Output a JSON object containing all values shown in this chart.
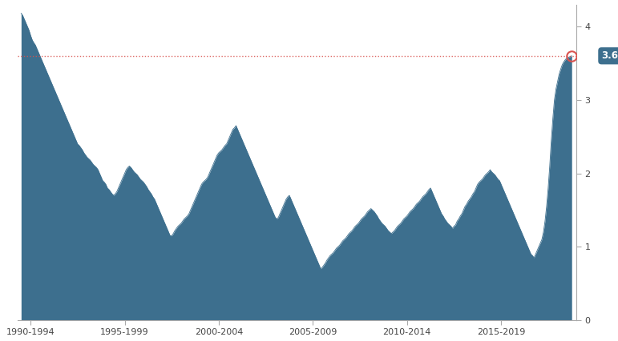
{
  "bar_color": "#3d6f8e",
  "dotted_line_y": 3.6,
  "dotted_line_color": "#d9534f",
  "annotation_value": "3.6",
  "annotation_bg": "#3d6f8e",
  "annotation_text_color": "#ffffff",
  "x_tick_labels": [
    "1990-1994",
    "1995-1999",
    "2000-2004",
    "2005-2009",
    "2010-2014",
    "2015-2019"
  ],
  "x_tick_positions": [
    6,
    66,
    126,
    186,
    246,
    306
  ],
  "background_color": "#ffffff",
  "ylim": [
    0,
    4.3
  ],
  "yticks": [
    0.0,
    1.0,
    2.0,
    3.0,
    4.0
  ],
  "pce_data": [
    4.18,
    4.15,
    4.1,
    4.05,
    4.0,
    3.95,
    3.88,
    3.82,
    3.78,
    3.75,
    3.7,
    3.65,
    3.6,
    3.55,
    3.5,
    3.45,
    3.4,
    3.35,
    3.3,
    3.25,
    3.2,
    3.15,
    3.1,
    3.05,
    3.0,
    2.95,
    2.9,
    2.85,
    2.8,
    2.75,
    2.7,
    2.65,
    2.6,
    2.55,
    2.5,
    2.45,
    2.4,
    2.38,
    2.35,
    2.32,
    2.28,
    2.25,
    2.22,
    2.2,
    2.18,
    2.15,
    2.12,
    2.1,
    2.08,
    2.05,
    2.0,
    1.95,
    1.9,
    1.88,
    1.85,
    1.8,
    1.78,
    1.75,
    1.72,
    1.7,
    1.72,
    1.75,
    1.8,
    1.85,
    1.9,
    1.95,
    2.0,
    2.05,
    2.08,
    2.1,
    2.08,
    2.05,
    2.02,
    2.0,
    1.98,
    1.95,
    1.92,
    1.9,
    1.88,
    1.85,
    1.82,
    1.78,
    1.75,
    1.72,
    1.68,
    1.65,
    1.6,
    1.55,
    1.5,
    1.45,
    1.4,
    1.35,
    1.3,
    1.25,
    1.2,
    1.15,
    1.15,
    1.18,
    1.22,
    1.25,
    1.28,
    1.3,
    1.32,
    1.35,
    1.38,
    1.4,
    1.42,
    1.45,
    1.5,
    1.55,
    1.6,
    1.65,
    1.7,
    1.75,
    1.8,
    1.85,
    1.88,
    1.9,
    1.92,
    1.95,
    2.0,
    2.05,
    2.1,
    2.15,
    2.2,
    2.25,
    2.28,
    2.3,
    2.32,
    2.35,
    2.38,
    2.4,
    2.45,
    2.5,
    2.55,
    2.6,
    2.62,
    2.65,
    2.6,
    2.55,
    2.5,
    2.45,
    2.4,
    2.35,
    2.3,
    2.25,
    2.2,
    2.15,
    2.1,
    2.05,
    2.0,
    1.95,
    1.9,
    1.85,
    1.8,
    1.75,
    1.7,
    1.65,
    1.6,
    1.55,
    1.5,
    1.45,
    1.4,
    1.38,
    1.4,
    1.45,
    1.5,
    1.55,
    1.6,
    1.65,
    1.68,
    1.7,
    1.65,
    1.6,
    1.55,
    1.5,
    1.45,
    1.4,
    1.35,
    1.3,
    1.25,
    1.2,
    1.15,
    1.1,
    1.05,
    1.0,
    0.95,
    0.9,
    0.85,
    0.8,
    0.75,
    0.7,
    0.72,
    0.75,
    0.78,
    0.82,
    0.85,
    0.88,
    0.9,
    0.92,
    0.95,
    0.98,
    1.0,
    1.02,
    1.05,
    1.08,
    1.1,
    1.12,
    1.15,
    1.18,
    1.2,
    1.22,
    1.25,
    1.28,
    1.3,
    1.32,
    1.35,
    1.38,
    1.4,
    1.42,
    1.45,
    1.48,
    1.5,
    1.52,
    1.5,
    1.48,
    1.45,
    1.42,
    1.38,
    1.35,
    1.32,
    1.3,
    1.28,
    1.25,
    1.22,
    1.2,
    1.18,
    1.2,
    1.22,
    1.25,
    1.28,
    1.3,
    1.32,
    1.35,
    1.38,
    1.4,
    1.42,
    1.45,
    1.48,
    1.5,
    1.52,
    1.55,
    1.58,
    1.6,
    1.62,
    1.65,
    1.68,
    1.7,
    1.72,
    1.75,
    1.78,
    1.8,
    1.75,
    1.7,
    1.65,
    1.6,
    1.55,
    1.5,
    1.45,
    1.42,
    1.38,
    1.35,
    1.32,
    1.3,
    1.28,
    1.25,
    1.28,
    1.3,
    1.35,
    1.38,
    1.42,
    1.45,
    1.5,
    1.55,
    1.58,
    1.62,
    1.65,
    1.68,
    1.72,
    1.75,
    1.8,
    1.85,
    1.88,
    1.9,
    1.92,
    1.95,
    1.98,
    2.0,
    2.02,
    2.05,
    2.02,
    2.0,
    1.98,
    1.95,
    1.92,
    1.9,
    1.85,
    1.8,
    1.75,
    1.7,
    1.65,
    1.6,
    1.55,
    1.5,
    1.45,
    1.4,
    1.35,
    1.3,
    1.25,
    1.2,
    1.15,
    1.1,
    1.05,
    1.0,
    0.95,
    0.9,
    0.88,
    0.85,
    0.9,
    0.95,
    1.0,
    1.05,
    1.1,
    1.2,
    1.35,
    1.55,
    1.8,
    2.1,
    2.45,
    2.75,
    3.0,
    3.15,
    3.25,
    3.35,
    3.42,
    3.48,
    3.52,
    3.55,
    3.57,
    3.58,
    3.59,
    3.6
  ]
}
